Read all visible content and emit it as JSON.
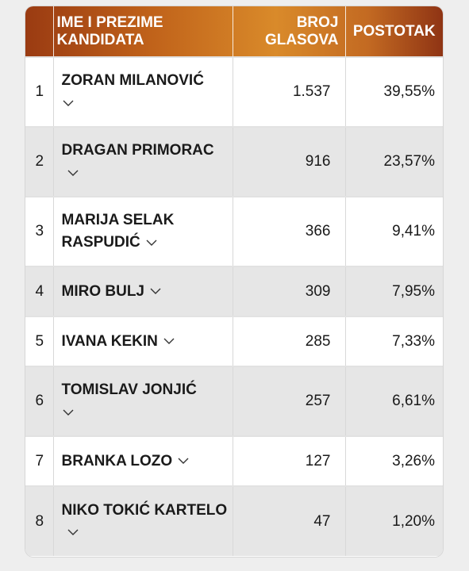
{
  "table": {
    "headers": {
      "name_line1": "IME I PREZIME",
      "name_line2": "KANDIDATA",
      "votes_line1": "BROJ",
      "votes_line2": "GLASOVA",
      "percent": "POSTOTAK"
    },
    "rows": [
      {
        "rank": "1",
        "name": "ZORAN MILANOVIĆ",
        "votes": "1.537",
        "percent": "39,55%"
      },
      {
        "rank": "2",
        "name": "DRAGAN PRIMORAC",
        "votes": "916",
        "percent": "23,57%"
      },
      {
        "rank": "3",
        "name": "MARIJA SELAK RASPUDIĆ",
        "votes": "366",
        "percent": "9,41%"
      },
      {
        "rank": "4",
        "name": "MIRO BULJ",
        "votes": "309",
        "percent": "7,95%"
      },
      {
        "rank": "5",
        "name": "IVANA KEKIN",
        "votes": "285",
        "percent": "7,33%"
      },
      {
        "rank": "6",
        "name": "TOMISLAV JONJIĆ",
        "votes": "257",
        "percent": "6,61%"
      },
      {
        "rank": "7",
        "name": "BRANKA LOZO",
        "votes": "127",
        "percent": "3,26%"
      },
      {
        "rank": "8",
        "name": "NIKO TOKIĆ KARTELO",
        "votes": "47",
        "percent": "1,20%"
      }
    ],
    "expand_icon": "chevron-down-icon",
    "header_gradient": [
      "#9a3b12",
      "#d98a2a",
      "#8f3414"
    ]
  }
}
